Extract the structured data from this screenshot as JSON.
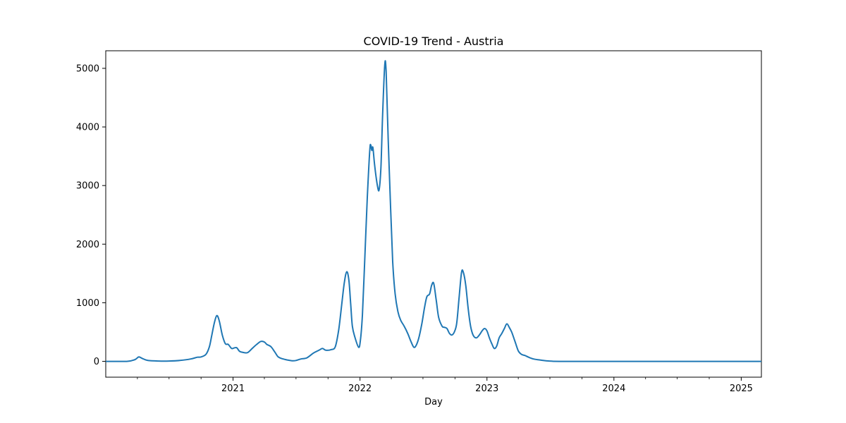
{
  "chart_data": {
    "type": "line",
    "title": "COVID-19 Trend - Austria",
    "xlabel": "Day",
    "ylabel": "",
    "xlim": [
      "2020-01-01",
      "2025-02-28"
    ],
    "ylim": [
      -270,
      5300
    ],
    "grid": false,
    "legend": "none",
    "x_ticks": [
      {
        "date": "2021-01-01",
        "label": "2021"
      },
      {
        "date": "2022-01-01",
        "label": "2022"
      },
      {
        "date": "2023-01-01",
        "label": "2023"
      },
      {
        "date": "2024-01-01",
        "label": "2024"
      },
      {
        "date": "2025-01-01",
        "label": "2025"
      }
    ],
    "x_minor_ticks": [
      "2020-04-01",
      "2020-07-01",
      "2020-10-01",
      "2021-04-01",
      "2021-07-01",
      "2021-10-01",
      "2022-04-01",
      "2022-07-01",
      "2022-10-01",
      "2023-04-01",
      "2023-07-01",
      "2023-10-01",
      "2024-04-01",
      "2024-07-01",
      "2024-10-01"
    ],
    "y_ticks": [
      0,
      1000,
      2000,
      3000,
      4000,
      5000
    ],
    "series": [
      {
        "color": "#1f77b4",
        "points": [
          [
            "2020-01-01",
            0
          ],
          [
            "2020-03-01",
            0
          ],
          [
            "2020-03-20",
            20
          ],
          [
            "2020-03-28",
            40
          ],
          [
            "2020-04-05",
            75
          ],
          [
            "2020-04-15",
            50
          ],
          [
            "2020-05-01",
            15
          ],
          [
            "2020-06-01",
            5
          ],
          [
            "2020-07-01",
            5
          ],
          [
            "2020-08-01",
            15
          ],
          [
            "2020-09-01",
            40
          ],
          [
            "2020-09-20",
            70
          ],
          [
            "2020-10-01",
            75
          ],
          [
            "2020-10-15",
            120
          ],
          [
            "2020-10-25",
            250
          ],
          [
            "2020-11-01",
            450
          ],
          [
            "2020-11-08",
            650
          ],
          [
            "2020-11-15",
            780
          ],
          [
            "2020-11-22",
            700
          ],
          [
            "2020-12-01",
            450
          ],
          [
            "2020-12-10",
            300
          ],
          [
            "2020-12-18",
            290
          ],
          [
            "2020-12-28",
            220
          ],
          [
            "2021-01-05",
            230
          ],
          [
            "2021-01-12",
            230
          ],
          [
            "2021-01-20",
            170
          ],
          [
            "2021-02-01",
            150
          ],
          [
            "2021-02-12",
            150
          ],
          [
            "2021-02-25",
            220
          ],
          [
            "2021-03-10",
            290
          ],
          [
            "2021-03-22",
            340
          ],
          [
            "2021-04-01",
            330
          ],
          [
            "2021-04-08",
            290
          ],
          [
            "2021-04-20",
            250
          ],
          [
            "2021-05-01",
            160
          ],
          [
            "2021-05-10",
            80
          ],
          [
            "2021-05-20",
            50
          ],
          [
            "2021-06-05",
            25
          ],
          [
            "2021-06-20",
            10
          ],
          [
            "2021-07-01",
            15
          ],
          [
            "2021-07-15",
            40
          ],
          [
            "2021-08-01",
            60
          ],
          [
            "2021-08-20",
            140
          ],
          [
            "2021-09-05",
            190
          ],
          [
            "2021-09-15",
            220
          ],
          [
            "2021-09-25",
            190
          ],
          [
            "2021-10-10",
            200
          ],
          [
            "2021-10-22",
            250
          ],
          [
            "2021-11-01",
            550
          ],
          [
            "2021-11-10",
            1000
          ],
          [
            "2021-11-17",
            1350
          ],
          [
            "2021-11-24",
            1530
          ],
          [
            "2021-11-30",
            1380
          ],
          [
            "2021-12-05",
            1000
          ],
          [
            "2021-12-10",
            600
          ],
          [
            "2021-12-18",
            400
          ],
          [
            "2021-12-28",
            240
          ],
          [
            "2022-01-02",
            350
          ],
          [
            "2022-01-08",
            800
          ],
          [
            "2022-01-15",
            1800
          ],
          [
            "2022-01-22",
            2800
          ],
          [
            "2022-01-29",
            3600
          ],
          [
            "2022-02-01",
            3690
          ],
          [
            "2022-02-04",
            3600
          ],
          [
            "2022-02-07",
            3650
          ],
          [
            "2022-02-12",
            3350
          ],
          [
            "2022-02-20",
            3000
          ],
          [
            "2022-02-25",
            2930
          ],
          [
            "2022-03-02",
            3300
          ],
          [
            "2022-03-07",
            4200
          ],
          [
            "2022-03-13",
            5050
          ],
          [
            "2022-03-17",
            4950
          ],
          [
            "2022-03-23",
            3800
          ],
          [
            "2022-03-30",
            2600
          ],
          [
            "2022-04-05",
            1700
          ],
          [
            "2022-04-12",
            1150
          ],
          [
            "2022-04-20",
            850
          ],
          [
            "2022-04-28",
            700
          ],
          [
            "2022-05-08",
            600
          ],
          [
            "2022-05-18",
            480
          ],
          [
            "2022-05-28",
            330
          ],
          [
            "2022-06-05",
            240
          ],
          [
            "2022-06-12",
            280
          ],
          [
            "2022-06-20",
            420
          ],
          [
            "2022-06-28",
            650
          ],
          [
            "2022-07-05",
            900
          ],
          [
            "2022-07-12",
            1100
          ],
          [
            "2022-07-20",
            1150
          ],
          [
            "2022-07-26",
            1300
          ],
          [
            "2022-08-01",
            1330
          ],
          [
            "2022-08-08",
            1050
          ],
          [
            "2022-08-15",
            750
          ],
          [
            "2022-08-25",
            600
          ],
          [
            "2022-09-01",
            580
          ],
          [
            "2022-09-08",
            560
          ],
          [
            "2022-09-15",
            480
          ],
          [
            "2022-09-22",
            450
          ],
          [
            "2022-09-29",
            500
          ],
          [
            "2022-10-06",
            650
          ],
          [
            "2022-10-13",
            1100
          ],
          [
            "2022-10-20",
            1520
          ],
          [
            "2022-10-25",
            1520
          ],
          [
            "2022-11-01",
            1300
          ],
          [
            "2022-11-08",
            900
          ],
          [
            "2022-11-15",
            600
          ],
          [
            "2022-11-22",
            450
          ],
          [
            "2022-12-01",
            400
          ],
          [
            "2022-12-10",
            450
          ],
          [
            "2022-12-18",
            520
          ],
          [
            "2022-12-25",
            560
          ],
          [
            "2023-01-01",
            520
          ],
          [
            "2023-01-08",
            400
          ],
          [
            "2023-01-15",
            300
          ],
          [
            "2023-01-22",
            220
          ],
          [
            "2023-01-29",
            260
          ],
          [
            "2023-02-05",
            400
          ],
          [
            "2023-02-12",
            470
          ],
          [
            "2023-02-20",
            560
          ],
          [
            "2023-02-27",
            640
          ],
          [
            "2023-03-06",
            580
          ],
          [
            "2023-03-13",
            500
          ],
          [
            "2023-03-22",
            350
          ],
          [
            "2023-04-01",
            180
          ],
          [
            "2023-04-10",
            120
          ],
          [
            "2023-04-20",
            100
          ],
          [
            "2023-05-01",
            70
          ],
          [
            "2023-05-15",
            40
          ],
          [
            "2023-06-01",
            25
          ],
          [
            "2023-06-20",
            10
          ],
          [
            "2023-07-05",
            3
          ],
          [
            "2023-08-01",
            0
          ],
          [
            "2024-01-01",
            0
          ],
          [
            "2024-06-01",
            0
          ],
          [
            "2025-02-28",
            0
          ]
        ]
      }
    ]
  }
}
